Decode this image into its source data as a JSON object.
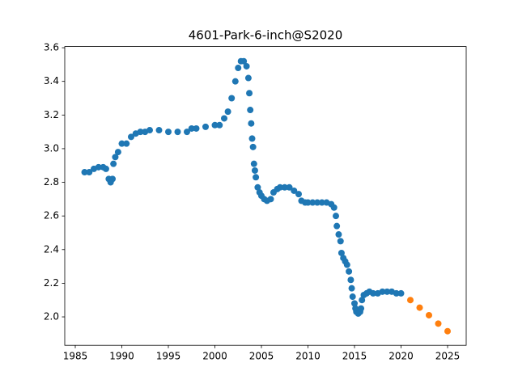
{
  "chart_data": {
    "type": "scatter",
    "title": "4601-Park-6-inch@S2020",
    "xlim": [
      1983.87,
      2027.0
    ],
    "ylim": [
      1.831,
      3.607
    ],
    "xticks": [
      1985,
      1990,
      1995,
      2000,
      2005,
      2010,
      2015,
      2020,
      2025
    ],
    "yticks": [
      {
        "value": 2,
        "label": "2.0"
      },
      2.2,
      2.4,
      2.6,
      2.8,
      {
        "value": 3,
        "label": "3.0"
      },
      3.2,
      3.4,
      3.6
    ],
    "grid": false,
    "series": [
      {
        "color": "#1f77b4",
        "x": [
          1986,
          1986.5,
          1987,
          1987.5,
          1988,
          1988.3,
          1988.6,
          1988.8,
          1989,
          1989.1,
          1989.3,
          1989.6,
          1990,
          1990.5,
          1991,
          1991.5,
          1992,
          1992.5,
          1993,
          1994,
          1995,
          1996,
          1997,
          1997.5,
          1998,
          1999,
          2000,
          2000.5,
          2001,
          2001.4,
          2001.8,
          2002.2,
          2002.5,
          2002.8,
          2003.1,
          2003.4,
          2003.6,
          2003.7,
          2003.8,
          2003.9,
          2004,
          2004.1,
          2004.2,
          2004.3,
          2004.4,
          2004.6,
          2004.8,
          2005,
          2005.3,
          2005.6,
          2006,
          2006.3,
          2006.7,
          2007,
          2007.5,
          2008,
          2008.5,
          2009,
          2009.3,
          2009.7,
          2010,
          2010.5,
          2011,
          2011.5,
          2012,
          2012.5,
          2012.8,
          2013,
          2013.1,
          2013.3,
          2013.5,
          2013.6,
          2013.8,
          2014,
          2014.2,
          2014.4,
          2014.6,
          2014.7,
          2014.8,
          2015,
          2015.1,
          2015.2,
          2015.4,
          2015.6,
          2015.7,
          2015.8,
          2016,
          2016.3,
          2016.6,
          2017,
          2017.5,
          2018,
          2018.5,
          2019,
          2019.5,
          2020
        ],
        "values": [
          2.86,
          2.86,
          2.88,
          2.89,
          2.89,
          2.88,
          2.82,
          2.8,
          2.82,
          2.91,
          2.95,
          2.98,
          3.03,
          3.03,
          3.07,
          3.09,
          3.1,
          3.1,
          3.11,
          3.11,
          3.1,
          3.1,
          3.1,
          3.12,
          3.12,
          3.13,
          3.14,
          3.14,
          3.18,
          3.22,
          3.3,
          3.4,
          3.48,
          3.52,
          3.52,
          3.49,
          3.42,
          3.33,
          3.23,
          3.15,
          3.06,
          3.01,
          2.91,
          2.87,
          2.83,
          2.77,
          2.74,
          2.72,
          2.7,
          2.69,
          2.7,
          2.74,
          2.76,
          2.77,
          2.77,
          2.77,
          2.75,
          2.73,
          2.69,
          2.68,
          2.68,
          2.68,
          2.68,
          2.68,
          2.68,
          2.67,
          2.65,
          2.6,
          2.54,
          2.49,
          2.45,
          2.38,
          2.35,
          2.33,
          2.31,
          2.27,
          2.22,
          2.17,
          2.12,
          2.08,
          2.05,
          2.03,
          2.02,
          2.03,
          2.05,
          2.1,
          2.13,
          2.14,
          2.15,
          2.14,
          2.14,
          2.15,
          2.15,
          2.15,
          2.14,
          2.14
        ]
      },
      {
        "color": "#ff7f0e",
        "x": [
          2021,
          2022,
          2023,
          2024,
          2025
        ],
        "values": [
          2.1,
          2.055,
          2.01,
          1.96,
          1.915
        ]
      }
    ]
  }
}
